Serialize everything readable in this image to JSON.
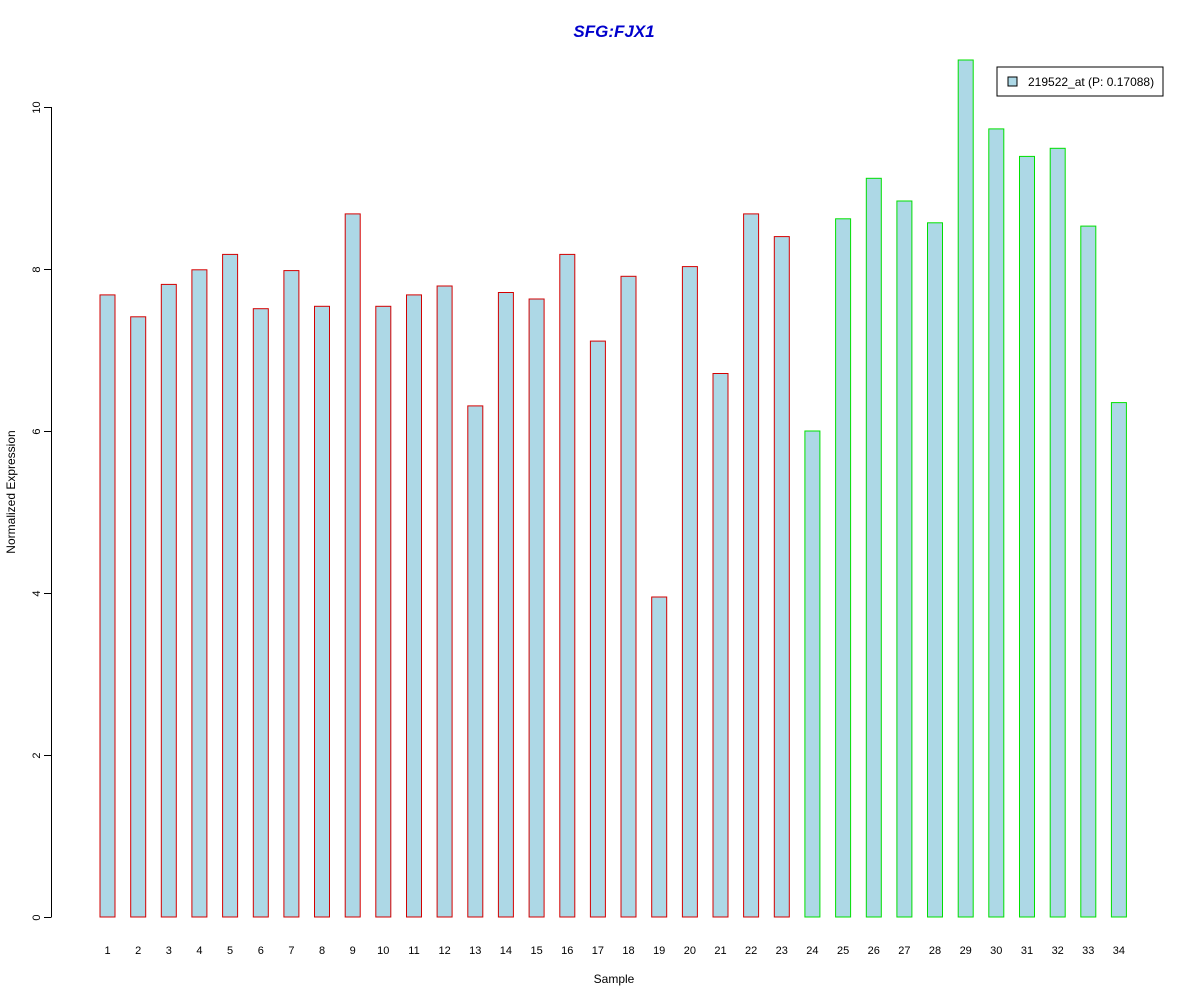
{
  "chart_data": {
    "type": "bar",
    "title": "SFG:FJX1",
    "xlabel": "Sample",
    "ylabel": "Normalized Expression",
    "ylim": [
      0,
      10.6
    ],
    "yticks": [
      0,
      2,
      4,
      6,
      8,
      10
    ],
    "categories": [
      "1",
      "2",
      "3",
      "4",
      "5",
      "6",
      "7",
      "8",
      "9",
      "10",
      "11",
      "12",
      "13",
      "14",
      "15",
      "16",
      "17",
      "18",
      "19",
      "20",
      "21",
      "22",
      "23",
      "24",
      "25",
      "26",
      "27",
      "28",
      "29",
      "30",
      "31",
      "32",
      "33",
      "34"
    ],
    "series": [
      {
        "name": "219522_at (P: 0.17088)",
        "values": [
          7.68,
          7.41,
          7.81,
          7.99,
          8.18,
          7.51,
          7.98,
          7.54,
          8.68,
          7.54,
          7.68,
          7.79,
          6.31,
          7.71,
          7.63,
          8.18,
          7.11,
          7.91,
          3.95,
          8.03,
          6.71,
          8.68,
          8.4,
          6.0,
          8.62,
          9.12,
          8.84,
          8.57,
          10.58,
          9.73,
          9.39,
          9.49,
          8.53,
          6.35
        ]
      }
    ],
    "groups": [
      {
        "samples": [
          1,
          23
        ],
        "border_color": "#d40000"
      },
      {
        "samples": [
          24,
          34
        ],
        "border_color": "#00e000"
      }
    ],
    "colors": {
      "bar_fill": "#add8e6",
      "title": "#0000cc",
      "axis": "#000000",
      "legend_border": "#000000"
    },
    "legend": {
      "label": "219522_at (P: 0.17088)",
      "placement": "top-right"
    },
    "grid": false
  }
}
